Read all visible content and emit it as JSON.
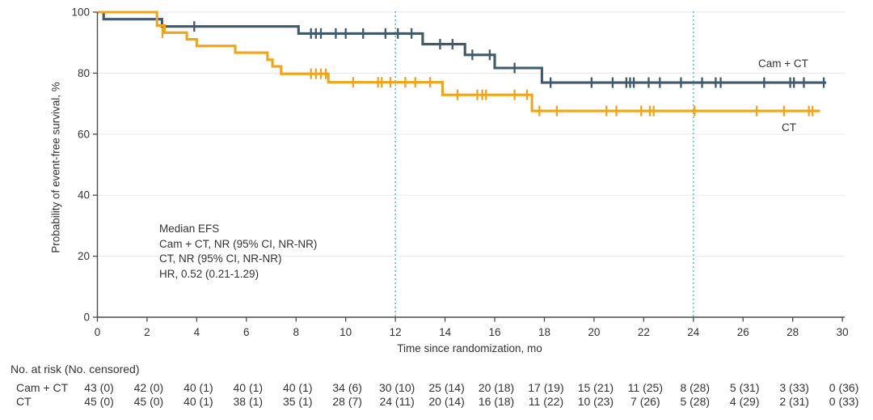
{
  "figure": {
    "y_axis_title": "Probability of event-free survival, %",
    "x_axis_title": "Time since randomization, mo"
  },
  "chart_data": {
    "type": "line",
    "subtype": "kaplan-meier-step",
    "title": "",
    "xlabel": "Time since randomization, mo",
    "ylabel": "Probability of event-free survival, %",
    "xlim": [
      0,
      30
    ],
    "ylim": [
      0,
      100
    ],
    "x_ticks": [
      0,
      2,
      4,
      6,
      8,
      10,
      12,
      14,
      16,
      18,
      20,
      22,
      24,
      26,
      28,
      30
    ],
    "y_ticks": [
      0,
      20,
      40,
      60,
      80,
      100
    ],
    "grid": "horizontal",
    "legend_position": "inline-right",
    "reference_lines_x": [
      12,
      24
    ],
    "annotation_lines": [
      "Median EFS",
      "Cam + CT, NR (95% CI, NR-NR)",
      "CT, NR (95% CI, NR-NR)",
      "HR, 0.52 (0.21-1.29)"
    ],
    "series": [
      {
        "name": "Cam + CT",
        "color": "#3e5a6b",
        "steps": [
          [
            0,
            100
          ],
          [
            0.25,
            100
          ],
          [
            0.25,
            97.7
          ],
          [
            2.6,
            97.7
          ],
          [
            2.6,
            95.3
          ],
          [
            8.1,
            95.3
          ],
          [
            8.1,
            93
          ],
          [
            13.1,
            93
          ],
          [
            13.1,
            89.5
          ],
          [
            14.8,
            89.5
          ],
          [
            14.8,
            86
          ],
          [
            16,
            86
          ],
          [
            16,
            81.7
          ],
          [
            17.9,
            81.7
          ],
          [
            17.9,
            76.9
          ],
          [
            29.35,
            76.9
          ]
        ],
        "censor_marks": [
          [
            3.9,
            95.3
          ],
          [
            8.6,
            93
          ],
          [
            8.8,
            93
          ],
          [
            9,
            93
          ],
          [
            9.6,
            93
          ],
          [
            10,
            93
          ],
          [
            10.7,
            93
          ],
          [
            11.6,
            93
          ],
          [
            12.1,
            93
          ],
          [
            12.65,
            93
          ],
          [
            13.8,
            89.5
          ],
          [
            14.3,
            89.5
          ],
          [
            15.1,
            86
          ],
          [
            15.8,
            86
          ],
          [
            16.8,
            81.7
          ],
          [
            18.25,
            76.9
          ],
          [
            19.9,
            76.9
          ],
          [
            20.75,
            76.9
          ],
          [
            21.3,
            76.9
          ],
          [
            21.45,
            76.9
          ],
          [
            21.6,
            76.9
          ],
          [
            22.2,
            76.9
          ],
          [
            22.65,
            76.9
          ],
          [
            23.5,
            76.9
          ],
          [
            24.35,
            76.9
          ],
          [
            24.9,
            76.9
          ],
          [
            25.1,
            76.9
          ],
          [
            26.85,
            76.9
          ],
          [
            27.9,
            76.9
          ],
          [
            28.05,
            76.9
          ],
          [
            28.45,
            76.9
          ],
          [
            29.25,
            76.9
          ]
        ]
      },
      {
        "name": "CT",
        "color": "#f0a419",
        "steps": [
          [
            0,
            100
          ],
          [
            2.4,
            100
          ],
          [
            2.4,
            95.6
          ],
          [
            2.7,
            95.6
          ],
          [
            2.7,
            93.3
          ],
          [
            3.6,
            93.3
          ],
          [
            3.6,
            91.1
          ],
          [
            4,
            91.1
          ],
          [
            4,
            88.9
          ],
          [
            5.55,
            88.9
          ],
          [
            5.55,
            86.7
          ],
          [
            6.85,
            86.7
          ],
          [
            6.85,
            84.4
          ],
          [
            7.05,
            84.4
          ],
          [
            7.05,
            82.2
          ],
          [
            7.4,
            82.2
          ],
          [
            7.4,
            79.8
          ],
          [
            9.3,
            79.8
          ],
          [
            9.3,
            77
          ],
          [
            13.9,
            77
          ],
          [
            13.9,
            72.9
          ],
          [
            17.5,
            72.9
          ],
          [
            17.5,
            67.6
          ],
          [
            29.1,
            67.6
          ]
        ],
        "censor_marks": [
          [
            2.62,
            93.3
          ],
          [
            8.6,
            79.8
          ],
          [
            8.8,
            79.8
          ],
          [
            9,
            79.8
          ],
          [
            9.2,
            79.8
          ],
          [
            10.3,
            77
          ],
          [
            11.3,
            77
          ],
          [
            11.45,
            77
          ],
          [
            11.8,
            77
          ],
          [
            12.4,
            77
          ],
          [
            12.8,
            77
          ],
          [
            13.4,
            77
          ],
          [
            14.5,
            72.9
          ],
          [
            15.3,
            72.9
          ],
          [
            15.5,
            72.9
          ],
          [
            15.65,
            72.9
          ],
          [
            16.8,
            72.9
          ],
          [
            17.3,
            72.9
          ],
          [
            17.8,
            67.6
          ],
          [
            18.5,
            67.6
          ],
          [
            20.5,
            67.6
          ],
          [
            20.9,
            67.6
          ],
          [
            21.9,
            67.6
          ],
          [
            22.25,
            67.6
          ],
          [
            22.4,
            67.6
          ],
          [
            24.05,
            67.6
          ],
          [
            26.55,
            67.6
          ],
          [
            27.65,
            67.6
          ],
          [
            28.65,
            67.6
          ],
          [
            28.8,
            67.6
          ]
        ]
      }
    ]
  },
  "risk_table": {
    "header": "No. at risk (No. censored)",
    "time_points": [
      0,
      2,
      4,
      6,
      8,
      10,
      12,
      14,
      16,
      18,
      20,
      22,
      24,
      26,
      28,
      30
    ],
    "rows": [
      {
        "label": "Cam + CT",
        "values": [
          "43 (0)",
          "42 (0)",
          "40 (1)",
          "40 (1)",
          "40 (1)",
          "34 (6)",
          "30 (10)",
          "25 (14)",
          "20 (18)",
          "17 (19)",
          "15 (21)",
          "11 (25)",
          "8 (28)",
          "5 (31)",
          "3 (33)",
          "0 (36)"
        ]
      },
      {
        "label": "CT",
        "values": [
          "45 (0)",
          "45 (0)",
          "40 (1)",
          "38 (1)",
          "35 (1)",
          "28 (7)",
          "24 (11)",
          "20 (14)",
          "16 (18)",
          "11 (22)",
          "10 (23)",
          "7 (26)",
          "5 (28)",
          "4 (29)",
          "2 (31)",
          "0 (33)"
        ]
      }
    ]
  },
  "colors": {
    "cam_ct": "#3e5a6b",
    "ct": "#f0a419",
    "reference_line": "#5ec8e8",
    "grid": "#ececec",
    "axis": "#474b4e",
    "text": "#333333"
  }
}
